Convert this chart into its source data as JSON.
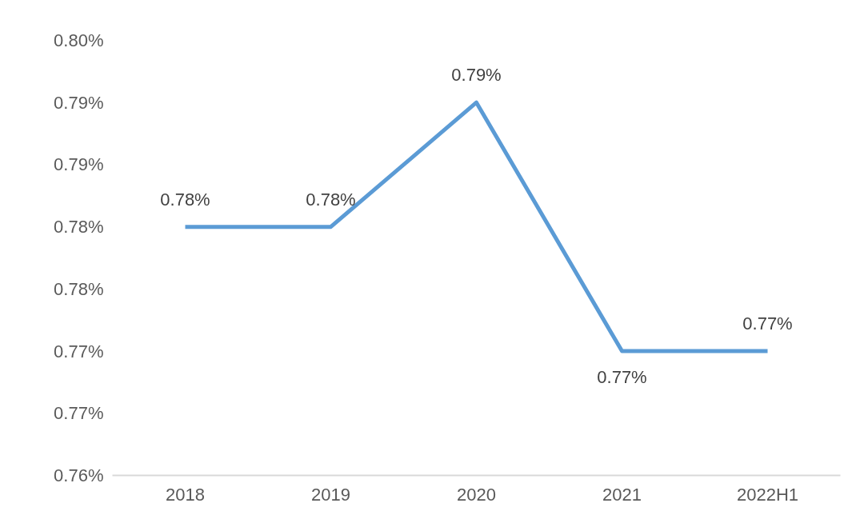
{
  "chart_data": {
    "type": "line",
    "categories": [
      "2018",
      "2019",
      "2020",
      "2021",
      "2022H1"
    ],
    "series": [
      {
        "color": "#5b9bd5",
        "values": [
          0.78,
          0.78,
          0.79,
          0.77,
          0.77
        ],
        "value_labels": [
          "0.78%",
          "0.78%",
          "0.79%",
          "0.77%",
          "0.77%"
        ]
      }
    ],
    "ylim": [
      0.76,
      0.795
    ],
    "yticks": [
      {
        "value": 0.76,
        "label": "0.76%"
      },
      {
        "value": 0.765,
        "label": "0.77%"
      },
      {
        "value": 0.77,
        "label": "0.77%"
      },
      {
        "value": 0.775,
        "label": "0.78%"
      },
      {
        "value": 0.78,
        "label": "0.78%"
      },
      {
        "value": 0.785,
        "label": "0.79%"
      },
      {
        "value": 0.79,
        "label": "0.79%"
      },
      {
        "value": 0.795,
        "label": "0.80%"
      }
    ],
    "grid": false,
    "marker": "none",
    "line_style": "solid"
  }
}
